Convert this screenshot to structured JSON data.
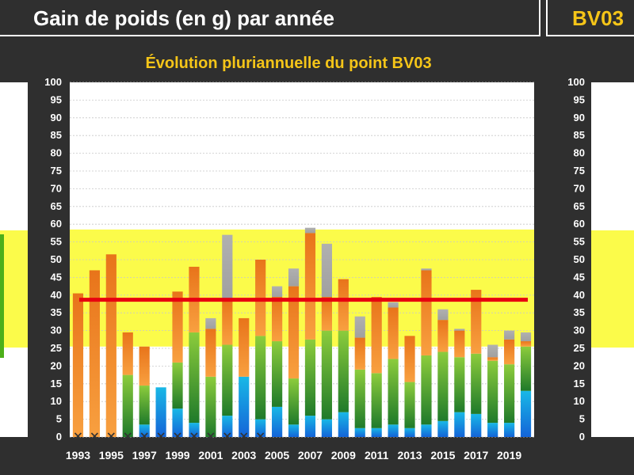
{
  "header": {
    "title": "Gain de poids (en g) par année",
    "station_code": "BV03"
  },
  "chart_data": {
    "type": "bar",
    "title": "Évolution pluriannuelle du point BV03",
    "ylim": [
      0,
      100
    ],
    "yticks": [
      0,
      5,
      10,
      15,
      20,
      25,
      30,
      35,
      40,
      45,
      50,
      55,
      60,
      65,
      70,
      75,
      80,
      85,
      90,
      95,
      100
    ],
    "xtick_labels": [
      "1993",
      "1995",
      "1997",
      "1999",
      "2001",
      "2003",
      "2005",
      "2007",
      "2009",
      "2011",
      "2013",
      "2015",
      "2017",
      "2019"
    ],
    "reference_band": [
      25.5,
      58.5
    ],
    "reference_line": 38.7,
    "colors": {
      "blue": "#1e8be0",
      "green": "#3f9a2a",
      "orange": "#f08a24",
      "gray": "#a8a8a8",
      "band": "#fbfb4a",
      "line": "#e8000f",
      "title": "#f5c518"
    },
    "categories": [
      "1993",
      "1994",
      "1995",
      "1996",
      "1997",
      "1998",
      "1999",
      "2000",
      "2001",
      "2002",
      "2003",
      "2004",
      "2005",
      "2006",
      "2007",
      "2008",
      "2009",
      "2010",
      "2011",
      "2012",
      "2013",
      "2014",
      "2015",
      "2016",
      "2017",
      "2018",
      "2019",
      "2020"
    ],
    "series": [
      {
        "key": "blue",
        "values": [
          0,
          0,
          0,
          0,
          3.5,
          14,
          8,
          4,
          0,
          6,
          17,
          5,
          8.5,
          3.5,
          6,
          5,
          7,
          2.5,
          2.5,
          3.5,
          2.5,
          3.5,
          4.5,
          7,
          6.5,
          4,
          4,
          13
        ]
      },
      {
        "key": "green",
        "values": [
          0,
          0,
          0,
          17.5,
          11,
          0,
          13,
          25.5,
          17,
          20,
          0,
          23.5,
          18.5,
          13,
          21.5,
          25,
          23,
          16.5,
          15.5,
          18.5,
          13,
          19.5,
          19.5,
          15.5,
          17,
          17.5,
          16.5,
          12.5
        ]
      },
      {
        "key": "orange",
        "values": [
          40.5,
          47,
          51.5,
          12,
          11,
          0,
          20,
          18.5,
          13.5,
          13,
          16.5,
          21.5,
          12.5,
          26,
          30,
          9.5,
          14.5,
          9,
          21.5,
          14.5,
          13,
          24,
          9,
          7.5,
          18,
          1,
          7,
          1.5
        ]
      },
      {
        "key": "gray",
        "values": [
          0,
          0,
          0,
          0,
          0,
          0,
          0,
          0,
          3,
          18,
          0,
          0,
          3,
          5,
          1.5,
          15,
          0,
          6,
          0,
          1.5,
          0,
          0.5,
          3,
          0.5,
          0,
          3.5,
          2.5,
          2.5
        ]
      }
    ],
    "no_data_markers": [
      "1993",
      "1994",
      "1995",
      "1996",
      "1997",
      "1998",
      "1999",
      "2000",
      "2001",
      "2002",
      "2003",
      "2004"
    ]
  }
}
